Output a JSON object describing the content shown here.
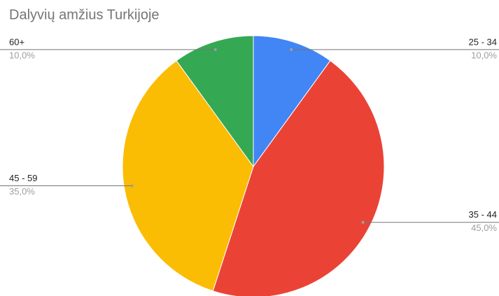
{
  "chart_data": {
    "type": "pie",
    "title": "Dalyvių amžius Turkijoje",
    "categories": [
      "25 - 34",
      "35 - 44",
      "45 - 59",
      "60+"
    ],
    "values": [
      10,
      45,
      35,
      10
    ],
    "value_labels": [
      "10,0%",
      "45,0%",
      "35,0%",
      "10,0%"
    ],
    "colors": [
      "#4285f4",
      "#ea4335",
      "#fbbc04",
      "#34a853"
    ]
  }
}
